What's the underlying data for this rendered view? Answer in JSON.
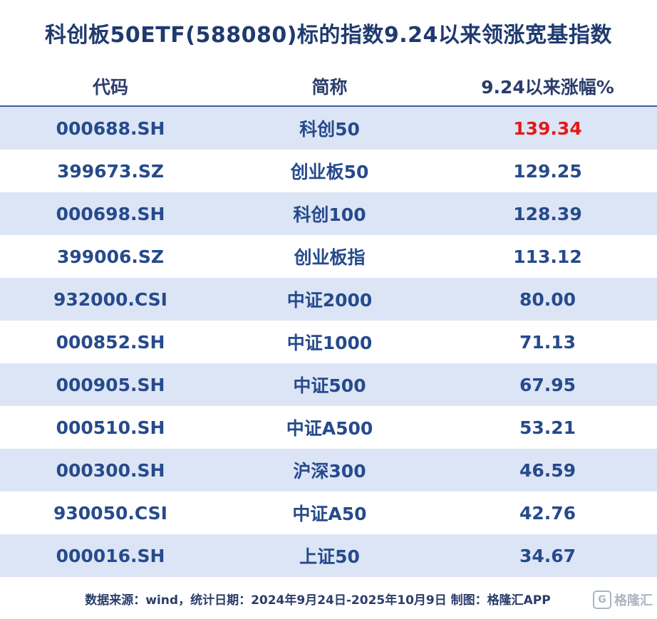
{
  "chart_data": {
    "type": "table",
    "title": "科创板50ETF(588080)标的指数9.24以来领涨宽基指数",
    "columns": [
      "代码",
      "简称",
      "9.24以来涨幅%"
    ],
    "rows": [
      {
        "code": "000688.SH",
        "name": "科创50",
        "value": "139.34"
      },
      {
        "code": "399673.SZ",
        "name": "创业板50",
        "value": "129.25"
      },
      {
        "code": "000698.SH",
        "name": "科创100",
        "value": "128.39"
      },
      {
        "code": "399006.SZ",
        "name": "创业板指",
        "value": "113.12"
      },
      {
        "code": "932000.CSI",
        "name": "中证2000",
        "value": "80.00"
      },
      {
        "code": "000852.SH",
        "name": "中证1000",
        "value": "71.13"
      },
      {
        "code": "000905.SH",
        "name": "中证500",
        "value": "67.95"
      },
      {
        "code": "000510.SH",
        "name": "中证A500",
        "value": "53.21"
      },
      {
        "code": "000300.SH",
        "name": "沪深300",
        "value": "46.59"
      },
      {
        "code": "930050.CSI",
        "name": "中证A50",
        "value": "42.76"
      },
      {
        "code": "000016.SH",
        "name": "上证50",
        "value": "34.67"
      }
    ],
    "highlight_color": "#e01b1b",
    "row_shade_color": "#dce5f5",
    "text_color": "#264a8c"
  },
  "footer": "数据来源：wind，统计日期：2024年9月24日-2025年10月9日 制图：格隆汇APP",
  "watermark": {
    "icon": "G",
    "text": "格隆汇"
  }
}
